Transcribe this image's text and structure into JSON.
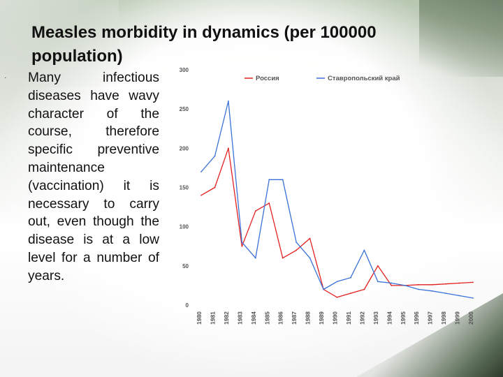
{
  "slide": {
    "title": "Measles morbidity in dynamics (per 100000 population)",
    "bullet_glyph": "·",
    "body": "Many infectious diseases have wavy character of the course, therefore specific preventive maintenance (vaccination) it is necessary to carry out, even though the disease is at a low level for a number of years."
  },
  "colors": {
    "russia": "#e32020",
    "stavropol": "#3a72d8",
    "axis_text": "#555555"
  },
  "chart_data": {
    "type": "line",
    "title": "",
    "xlabel": "",
    "ylabel": "",
    "ylim": [
      0,
      300
    ],
    "yticks": [
      0,
      50,
      100,
      150,
      200,
      250,
      300
    ],
    "grid": false,
    "legend_position": "top",
    "categories": [
      "1980",
      "1981",
      "1982",
      "1983",
      "1984",
      "1985",
      "1986",
      "1987",
      "1988",
      "1989",
      "1990",
      "1991",
      "1992",
      "1993",
      "1994",
      "1995",
      "1996",
      "1997",
      "1998",
      "1999",
      "2000"
    ],
    "series": [
      {
        "name": "Россия",
        "color": "#e32020",
        "values": [
          140,
          150,
          200,
          75,
          120,
          130,
          60,
          70,
          85,
          20,
          10,
          15,
          20,
          50,
          25,
          25,
          26,
          26,
          27,
          28,
          29
        ]
      },
      {
        "name": "Ставропольский край",
        "color": "#3a72d8",
        "values": [
          170,
          190,
          260,
          80,
          60,
          160,
          160,
          80,
          60,
          20,
          30,
          35,
          70,
          30,
          28,
          25,
          20,
          18,
          15,
          12,
          9
        ]
      }
    ]
  }
}
